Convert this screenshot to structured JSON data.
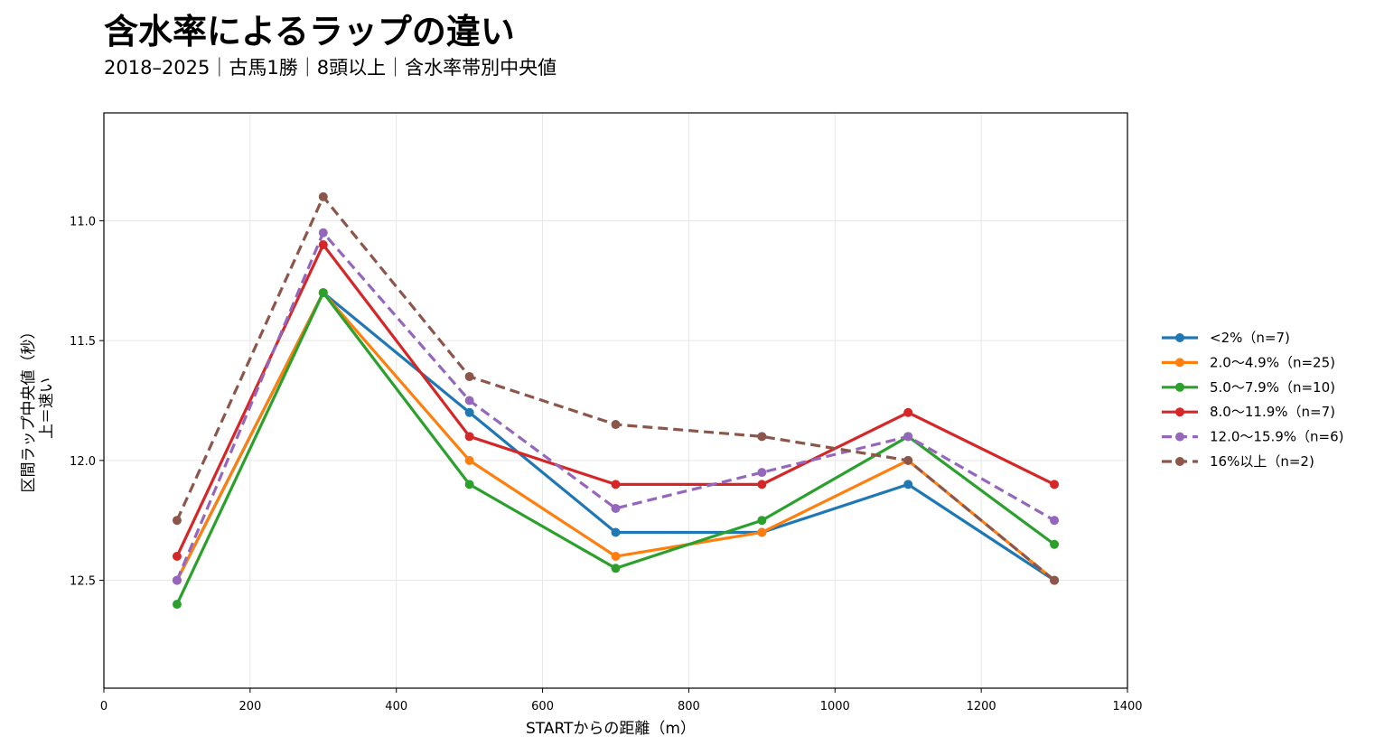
{
  "chart_data": {
    "type": "line",
    "title": "含水率によるラップの違い",
    "subtitle": "2018–2025｜古馬1勝｜8頭以上｜含水率帯別中央値",
    "xlabel": "STARTからの距離（m）",
    "ylabel_lines": [
      "区間ラップ中央値（秒）",
      "上＝速い"
    ],
    "xlim": [
      0,
      1400
    ],
    "ylim": [
      12.95,
      10.55
    ],
    "y_inverted": true,
    "xticks": [
      0,
      200,
      400,
      600,
      800,
      1000,
      1200,
      1400
    ],
    "yticks": [
      11.0,
      11.5,
      12.0,
      12.5
    ],
    "ytick_labels": [
      "11.0",
      "11.5",
      "12.0",
      "12.5"
    ],
    "grid": true,
    "legend_position": "right",
    "x": [
      100,
      300,
      500,
      700,
      900,
      1100,
      1300
    ],
    "series": [
      {
        "name": "<2%（n=7)",
        "color": "#1f77b4",
        "dashed": false,
        "values": [
          12.5,
          11.3,
          11.8,
          12.3,
          12.3,
          12.1,
          12.5
        ]
      },
      {
        "name": "2.0〜4.9%（n=25)",
        "color": "#ff7f0e",
        "dashed": false,
        "values": [
          12.5,
          11.3,
          12.0,
          12.4,
          12.3,
          12.0,
          12.5
        ]
      },
      {
        "name": "5.0〜7.9%（n=10)",
        "color": "#2ca02c",
        "dashed": false,
        "values": [
          12.6,
          11.3,
          12.1,
          12.45,
          12.25,
          11.9,
          12.35
        ]
      },
      {
        "name": "8.0〜11.9%（n=7)",
        "color": "#d62728",
        "dashed": false,
        "values": [
          12.4,
          11.1,
          11.9,
          12.1,
          12.1,
          11.8,
          12.1
        ]
      },
      {
        "name": "12.0〜15.9%（n=6)",
        "color": "#9467bd",
        "dashed": true,
        "values": [
          12.5,
          11.05,
          11.75,
          12.2,
          12.05,
          11.9,
          12.25
        ]
      },
      {
        "name": "16%以上（n=2)",
        "color": "#8c564b",
        "dashed": true,
        "values": [
          12.25,
          10.9,
          11.65,
          11.85,
          11.9,
          12.0,
          12.5
        ]
      }
    ]
  }
}
